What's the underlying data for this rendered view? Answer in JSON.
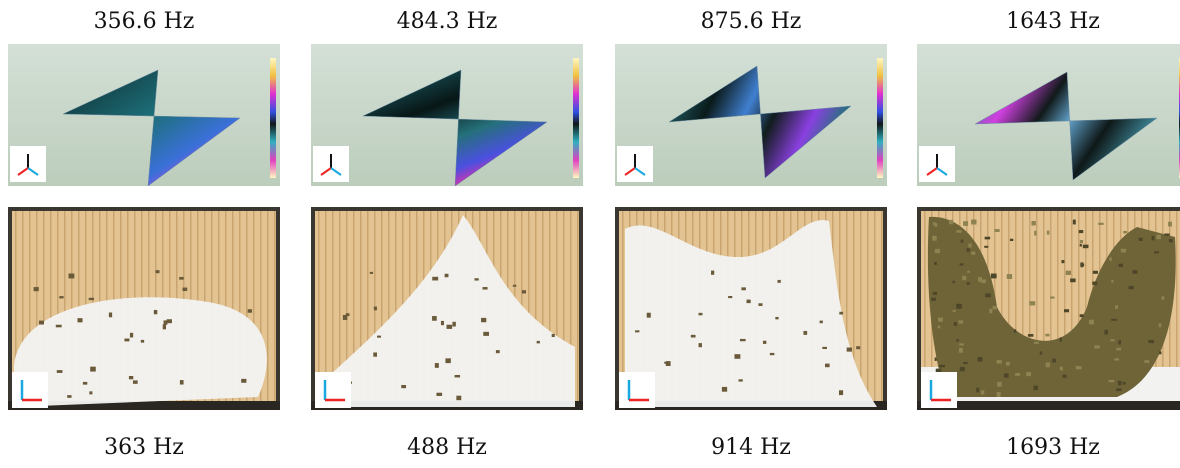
{
  "panels": [
    {
      "simulation_label": "356.6 Hz",
      "experiment_label": "363 Hz"
    },
    {
      "simulation_label": "484.3 Hz",
      "experiment_label": "488 Hz"
    },
    {
      "simulation_label": "875.6 Hz",
      "experiment_label": "914 Hz"
    },
    {
      "simulation_label": "1643 Hz",
      "experiment_label": "1693 Hz"
    }
  ]
}
